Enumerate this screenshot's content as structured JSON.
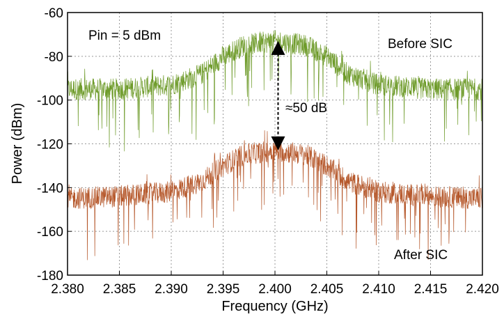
{
  "chart_data": {
    "type": "line",
    "xlabel": "Frequency (GHz)",
    "ylabel": "Power (dBm)",
    "xlim": [
      2.38,
      2.42
    ],
    "ylim": [
      -180,
      -60
    ],
    "xticks": [
      "2.380",
      "2.385",
      "2.390",
      "2.395",
      "2.400",
      "2.405",
      "2.410",
      "2.415",
      "2.420"
    ],
    "yticks": [
      "-60",
      "-80",
      "-100",
      "-120",
      "-140",
      "-160",
      "-180"
    ],
    "grid": true,
    "series": [
      {
        "name": "Before SIC",
        "color": "#6e9b2a",
        "x": [
          2.38,
          2.385,
          2.39,
          2.393,
          2.395,
          2.397,
          2.4,
          2.403,
          2.405,
          2.407,
          2.41,
          2.415,
          2.42
        ],
        "values": [
          -95,
          -95,
          -93,
          -88,
          -80,
          -75,
          -73,
          -75,
          -80,
          -88,
          -93,
          -95,
          -95
        ]
      },
      {
        "name": "After SIC",
        "color": "#b5572a",
        "x": [
          2.38,
          2.385,
          2.39,
          2.393,
          2.395,
          2.397,
          2.4,
          2.403,
          2.405,
          2.407,
          2.41,
          2.415,
          2.42
        ],
        "values": [
          -145,
          -144,
          -142,
          -137,
          -130,
          -125,
          -123,
          -125,
          -130,
          -137,
          -142,
          -144,
          -145
        ]
      }
    ],
    "annotations": {
      "pin": "Pin = 5 dBm",
      "delta": "≈50 dB",
      "before": "Before SIC",
      "after": "After SIC"
    },
    "arrow": {
      "x": 2.4003,
      "y_top": -73,
      "y_bottom": -123
    }
  }
}
